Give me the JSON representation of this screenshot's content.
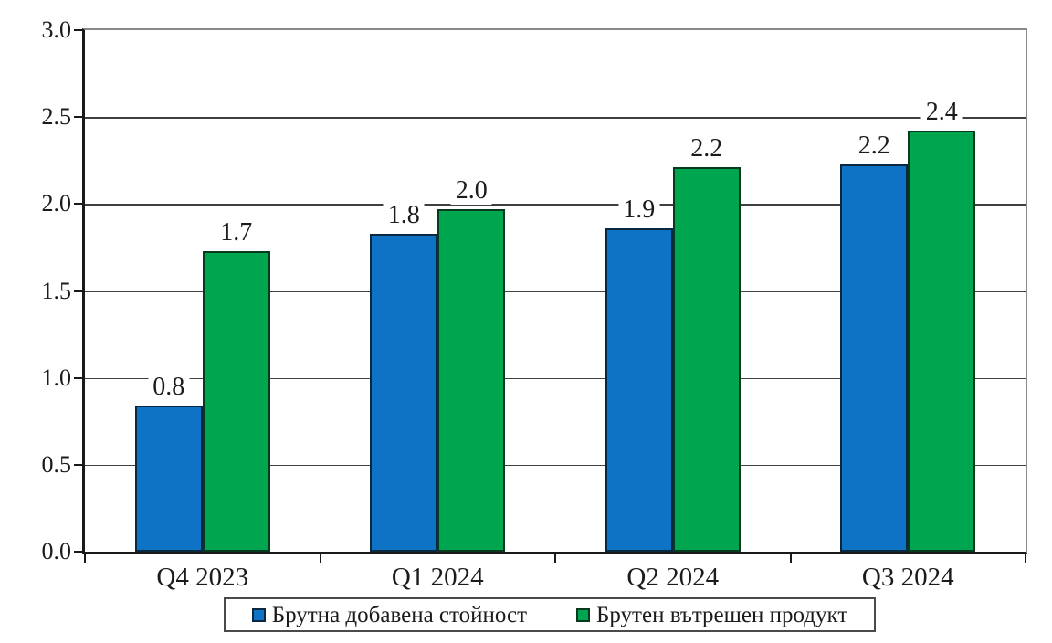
{
  "chart_data": {
    "type": "bar",
    "categories": [
      "Q4 2023",
      "Q1 2024",
      "Q2 2024",
      "Q3 2024"
    ],
    "series": [
      {
        "name": "Брутна добавена стойност",
        "color": "#0e72c5",
        "border_color": "#0a2740",
        "values": [
          0.8,
          1.8,
          1.9,
          2.2
        ],
        "labels": [
          "0.8",
          "1.8",
          "1.9",
          "2.2"
        ],
        "bar_heights": [
          0.84,
          1.83,
          1.86,
          2.23
        ]
      },
      {
        "name": "Брутен вътрешен продукт",
        "color": "#00a64f",
        "border_color": "#07391e",
        "values": [
          1.7,
          2.0,
          2.2,
          2.4
        ],
        "labels": [
          "1.7",
          "2.0",
          "2.2",
          "2.4"
        ],
        "bar_heights": [
          1.73,
          1.97,
          2.21,
          2.42
        ]
      }
    ],
    "ylim": [
      0,
      3.0
    ],
    "ytick_step": 0.5,
    "yticks": [
      "0.0",
      "0.5",
      "1.0",
      "1.5",
      "2.0",
      "2.5",
      "3.0"
    ],
    "grid": true,
    "legend_position": "bottom",
    "colors": {
      "axis": "#1a1a1a",
      "gridline": "#404040",
      "plot_border": "#8a8a8a",
      "background": "#ffffff",
      "text": "#1b1b1b"
    }
  }
}
